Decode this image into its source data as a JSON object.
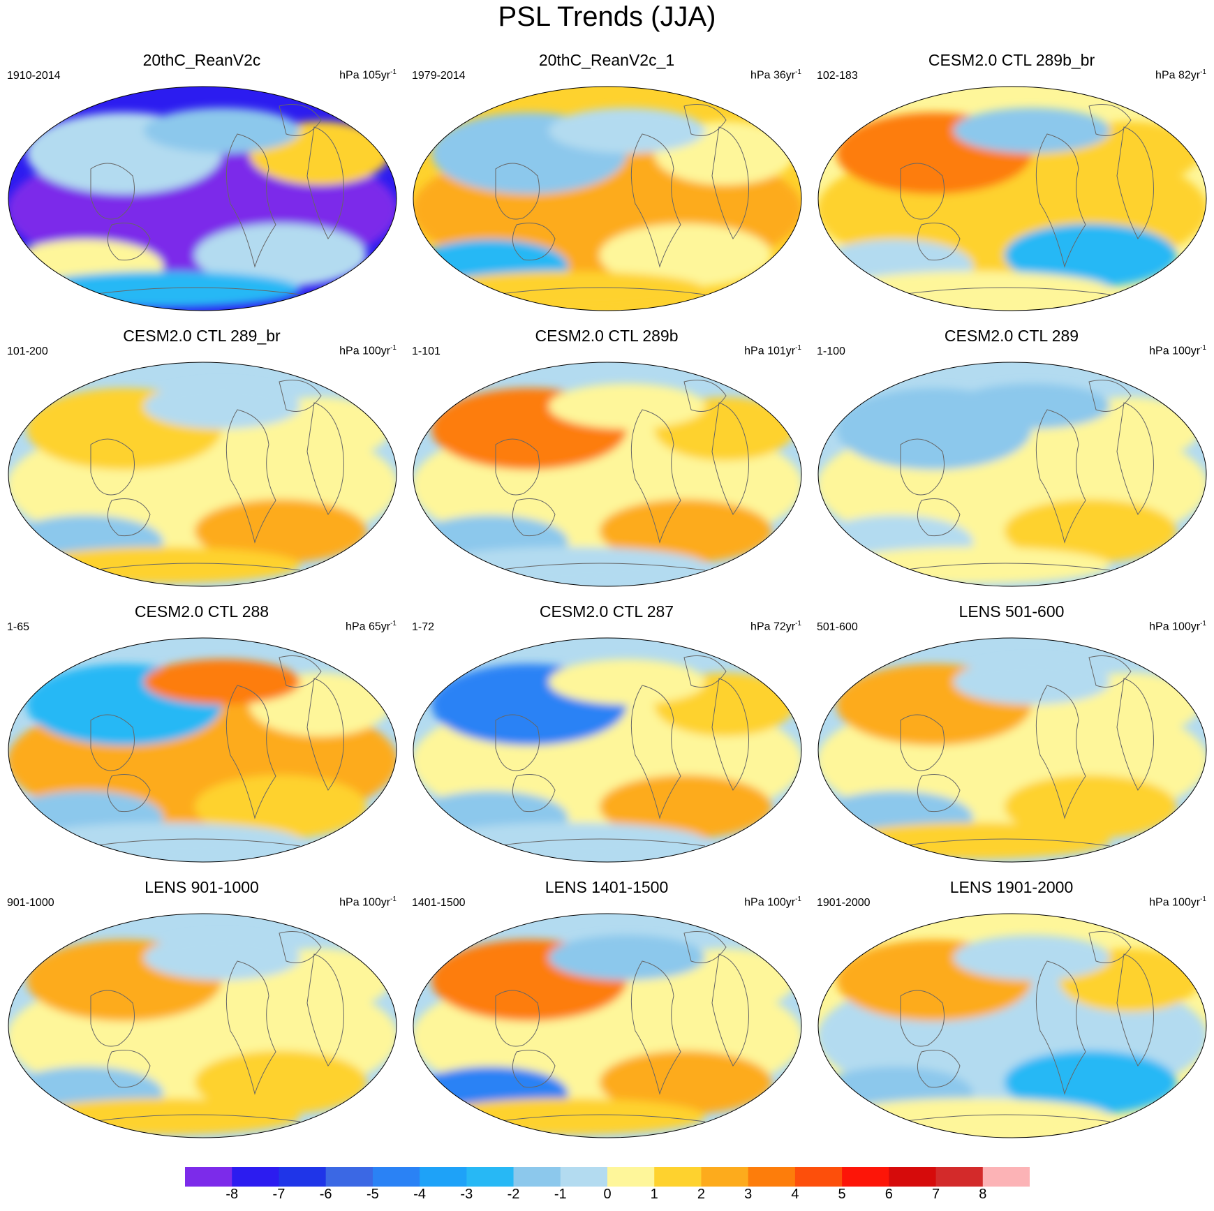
{
  "title": "PSL Trends (JJA)",
  "panels": [
    {
      "title": "20thC_ReanV2c",
      "period": "1910-2014",
      "units": "hPa 105yr",
      "exp": "-1",
      "colors": [
        "#2c1cf0",
        "#7c2bea",
        "#b3dbf0",
        "#b3dbf0",
        "#fef69a",
        "#fed22e",
        "#8cc8ec",
        "#27b8f5"
      ]
    },
    {
      "title": "20thC_ReanV2c_1",
      "period": "1979-2014",
      "units": "hPa 36yr",
      "exp": "-1",
      "colors": [
        "#fed22e",
        "#fdab1c",
        "#8cc8ec",
        "#fef69a",
        "#27b8f5",
        "#fef69a",
        "#b3dbf0",
        "#fed22e"
      ]
    },
    {
      "title": "CESM2.0 CTL 289b_br",
      "period": "102-183",
      "units": "hPa 82yr",
      "exp": "-1",
      "colors": [
        "#fef69a",
        "#fed22e",
        "#fd7d0b",
        "#27b8f5",
        "#b3dbf0",
        "#fed22e",
        "#8cc8ec",
        "#fef69a"
      ]
    },
    {
      "title": "CESM2.0 CTL 289_br",
      "period": "101-200",
      "units": "hPa 100yr",
      "exp": "-1",
      "colors": [
        "#b3dbf0",
        "#fef69a",
        "#fed22e",
        "#fdab1c",
        "#8cc8ec",
        "#fef69a",
        "#b3dbf0",
        "#fed22e"
      ]
    },
    {
      "title": "CESM2.0 CTL 289b",
      "period": "1-101",
      "units": "hPa 101yr",
      "exp": "-1",
      "colors": [
        "#b3dbf0",
        "#fef69a",
        "#fd7d0b",
        "#fdab1c",
        "#8cc8ec",
        "#fed22e",
        "#fef69a",
        "#b3dbf0"
      ]
    },
    {
      "title": "CESM2.0 CTL 289",
      "period": "1-100",
      "units": "hPa 100yr",
      "exp": "-1",
      "colors": [
        "#b3dbf0",
        "#fef69a",
        "#8cc8ec",
        "#fed22e",
        "#b3dbf0",
        "#fef69a",
        "#8cc8ec",
        "#fef69a"
      ]
    },
    {
      "title": "CESM2.0 CTL 288",
      "period": "1-65",
      "units": "hPa 65yr",
      "exp": "-1",
      "colors": [
        "#b3dbf0",
        "#fdab1c",
        "#27b8f5",
        "#fed22e",
        "#8cc8ec",
        "#fef69a",
        "#fd7d0b",
        "#b3dbf0"
      ]
    },
    {
      "title": "CESM2.0 CTL 287",
      "period": "1-72",
      "units": "hPa 72yr",
      "exp": "-1",
      "colors": [
        "#b3dbf0",
        "#fef69a",
        "#2a82f5",
        "#fdab1c",
        "#8cc8ec",
        "#fed22e",
        "#fef69a",
        "#b3dbf0"
      ]
    },
    {
      "title": "LENS 501-600",
      "period": "501-600",
      "units": "hPa 100yr",
      "exp": "-1",
      "colors": [
        "#b3dbf0",
        "#fef69a",
        "#fdab1c",
        "#fed22e",
        "#8cc8ec",
        "#fef69a",
        "#b3dbf0",
        "#fed22e"
      ]
    },
    {
      "title": "LENS 901-1000",
      "period": "901-1000",
      "units": "hPa 100yr",
      "exp": "-1",
      "colors": [
        "#b3dbf0",
        "#fef69a",
        "#fdab1c",
        "#fed22e",
        "#8cc8ec",
        "#fef69a",
        "#b3dbf0",
        "#fed22e"
      ]
    },
    {
      "title": "LENS 1401-1500",
      "period": "1401-1500",
      "units": "hPa 100yr",
      "exp": "-1",
      "colors": [
        "#b3dbf0",
        "#fef69a",
        "#fd7d0b",
        "#fdab1c",
        "#2a82f5",
        "#fef69a",
        "#8cc8ec",
        "#fed22e"
      ]
    },
    {
      "title": "LENS 1901-2000",
      "period": "1901-2000",
      "units": "hPa 100yr",
      "exp": "-1",
      "colors": [
        "#fef69a",
        "#b3dbf0",
        "#fdab1c",
        "#27b8f5",
        "#8cc8ec",
        "#fed22e",
        "#b3dbf0",
        "#fef69a"
      ]
    }
  ],
  "colorbar": {
    "colors": [
      "#7c2bea",
      "#2c1cf0",
      "#1f35e8",
      "#3b68e4",
      "#2a82f5",
      "#1ea2f8",
      "#27b8f5",
      "#8cc8ec",
      "#b3dbf0",
      "#fef69a",
      "#fed22e",
      "#fdab1c",
      "#fd7d0b",
      "#fd4f0b",
      "#fd1508",
      "#d60b0b",
      "#d32a2a",
      "#fcb3b6"
    ],
    "labels": [
      "-8",
      "-7",
      "-6",
      "-5",
      "-4",
      "-3",
      "-2",
      "-1",
      "0",
      "1",
      "2",
      "3",
      "4",
      "5",
      "6",
      "7",
      "8"
    ]
  }
}
